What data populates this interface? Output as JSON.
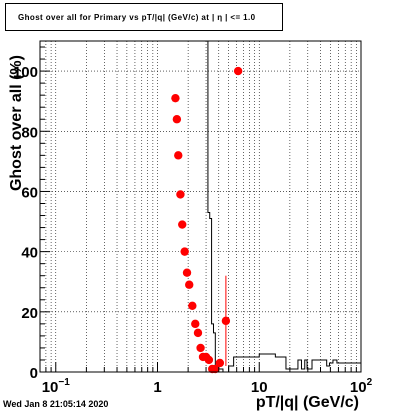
{
  "footer": {
    "timestamp": "Wed Jan  8 21:05:14 2020"
  },
  "chart_data": {
    "type": "scatter",
    "title": "Ghost over all for Primary vs pT/|q| (GeV/c) at | η | <= 1.0",
    "xlabel": "pT/|q| (GeV/c)",
    "ylabel": "Ghost over all (%)",
    "xscale": "log",
    "xlim": [
      0.07,
      100
    ],
    "ylim": [
      0,
      110
    ],
    "x_ticks": [
      {
        "value": 0.1,
        "label": "10⁻¹"
      },
      {
        "value": 1,
        "label": "1"
      },
      {
        "value": 10,
        "label": "10"
      },
      {
        "value": 100,
        "label": "10²"
      }
    ],
    "y_ticks": [
      0,
      20,
      40,
      60,
      80,
      100
    ],
    "grid": true,
    "legend": "none",
    "colors": {
      "points": "#ff0000",
      "histogram": "#000000",
      "error_bars": "#ff0000"
    },
    "series": [
      {
        "style": "markers",
        "x": [
          1.5,
          1.55,
          1.6,
          1.68,
          1.75,
          1.85,
          1.95,
          2.05,
          2.2,
          2.35,
          2.5,
          2.65,
          2.8,
          3.0,
          3.2,
          3.45,
          3.7,
          4.1,
          4.7,
          6.2
        ],
        "y": [
          91,
          84,
          72,
          59,
          49,
          40,
          33,
          29,
          22,
          16,
          13,
          8,
          5,
          5,
          4,
          1,
          1,
          3,
          17,
          100
        ],
        "yerr": [
          0,
          0,
          0,
          0,
          0,
          0,
          0,
          0,
          0,
          0,
          0,
          0,
          0,
          0,
          0,
          0,
          0,
          0,
          15,
          0
        ]
      },
      {
        "style": "histogram",
        "edges": [
          3.0,
          3.13,
          3.26,
          3.4,
          3.55,
          3.7,
          4.0,
          4.4,
          5.0,
          5.6,
          6.8,
          8.6,
          10.0,
          11.9,
          14.4,
          18.3,
          20.0,
          24.0,
          26.0,
          28.0,
          29.5,
          31.0,
          33.0,
          46.0,
          49.0,
          53.0,
          58.0,
          100.0
        ],
        "values": [
          110,
          53,
          51,
          16,
          13,
          2,
          1,
          0,
          2,
          5,
          5,
          5,
          6,
          6,
          5,
          1,
          1,
          4,
          1,
          4,
          1,
          1,
          4,
          2,
          3,
          4,
          3
        ]
      }
    ]
  }
}
